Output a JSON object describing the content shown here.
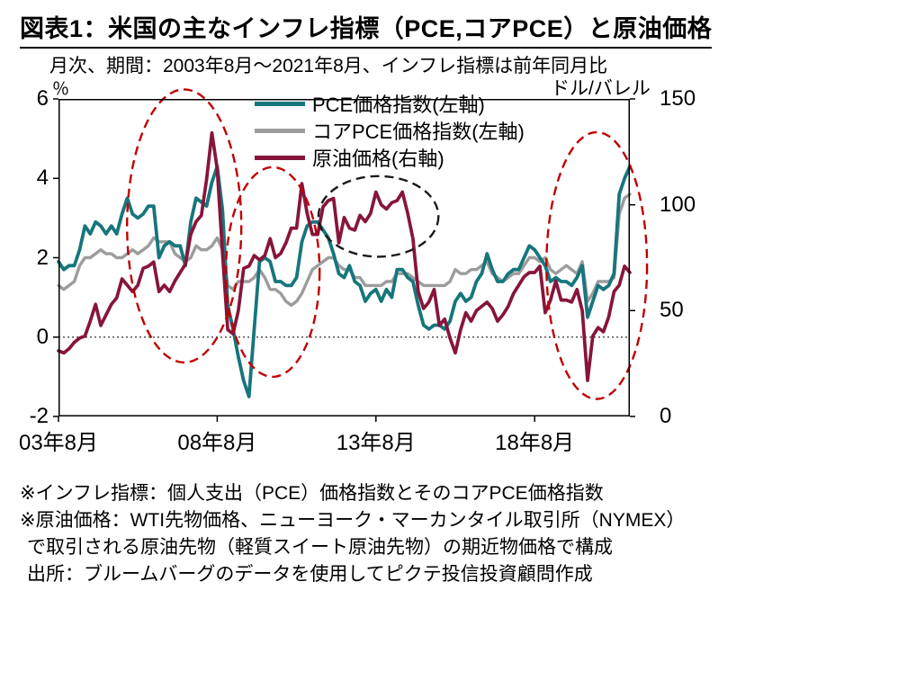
{
  "title": "図表1：米国の主なインフレ指標（PCE,コアPCE）と原油価格",
  "subtitle": "月次、期間：2003年8月～2021年8月、インフレ指標は前年同月比",
  "left_axis": {
    "unit": "％",
    "ticks": [
      6,
      4,
      2,
      0,
      -2
    ],
    "min": -2,
    "max": 6
  },
  "right_axis": {
    "unit": "ドル/バレル",
    "ticks": [
      150,
      100,
      50,
      0
    ],
    "min": 0,
    "max": 150
  },
  "x_ticks": [
    "03年8月",
    "08年8月",
    "13年8月",
    "18年8月"
  ],
  "legend": [
    {
      "label": "PCE価格指数(左軸)",
      "color": "#16767c"
    },
    {
      "label": "コアPCE価格指数(左軸)",
      "color": "#9c9c9c"
    },
    {
      "label": "原油価格(右軸)",
      "color": "#87153b"
    }
  ],
  "footnotes": [
    "※インフレ指標：個人支出（PCE）価格指数とそのコアPCE価格指数",
    "※原油価格：WTI先物価格、ニューヨーク・マーカンタイル取引所（NYMEX）",
    "で取引される原油先物（軽質スイート原油先物）の期近物価格で構成",
    "出所：ブルームバーグのデータを使用してピクテ投信投資顧問作成"
  ],
  "chart_data": {
    "type": "line",
    "title": "米国の主なインフレ指標（PCE,コアPCE）と原油価格",
    "x_start": "2003年8月",
    "x_end": "2021年8月",
    "interval_months": 2,
    "months_total": 216,
    "x_tick_months": [
      0,
      60,
      120,
      180
    ],
    "left_ylim": [
      -2,
      6
    ],
    "right_ylim": [
      0,
      150
    ],
    "grid": "zero-line-only",
    "legend_position": "top-inside",
    "series": [
      {
        "name": "PCE価格指数(左軸)",
        "axis": "left",
        "color": "#16767c",
        "unit": "%",
        "values": [
          1.9,
          1.7,
          1.8,
          1.8,
          2.2,
          2.8,
          2.6,
          2.9,
          2.8,
          2.6,
          2.8,
          2.6,
          3.1,
          3.5,
          3.1,
          3.0,
          3.1,
          3.3,
          3.3,
          2.0,
          2.3,
          2.4,
          2.3,
          2.3,
          1.8,
          2.9,
          3.5,
          3.4,
          3.3,
          3.9,
          4.3,
          3.2,
          0.8,
          0.2,
          -0.5,
          -1.1,
          -1.5,
          0.2,
          1.9,
          2.0,
          1.9,
          1.4,
          1.4,
          1.3,
          1.3,
          1.5,
          2.4,
          2.8,
          2.9,
          2.9,
          2.7,
          2.5,
          2.1,
          1.6,
          1.5,
          1.8,
          1.4,
          1.3,
          0.9,
          1.1,
          1.2,
          0.9,
          1.2,
          1.0,
          1.7,
          1.7,
          1.5,
          1.4,
          0.8,
          0.3,
          0.2,
          0.3,
          0.3,
          0.2,
          0.4,
          0.9,
          1.1,
          0.9,
          1.0,
          1.4,
          1.6,
          2.1,
          1.7,
          1.4,
          1.4,
          1.6,
          1.7,
          1.7,
          2.0,
          2.3,
          2.2,
          2.0,
          1.8,
          1.4,
          1.5,
          1.4,
          1.4,
          1.3,
          1.5,
          1.8,
          0.5,
          0.9,
          1.3,
          1.2,
          1.3,
          1.6,
          3.6,
          4.0,
          4.3
        ]
      },
      {
        "name": "コアPCE価格指数(左軸)",
        "axis": "left",
        "color": "#9c9c9c",
        "unit": "%",
        "values": [
          1.3,
          1.2,
          1.3,
          1.4,
          1.8,
          2.0,
          2.0,
          2.1,
          2.2,
          2.1,
          2.1,
          2.0,
          2.0,
          2.1,
          2.2,
          2.1,
          2.2,
          2.3,
          2.5,
          2.4,
          2.4,
          2.4,
          2.1,
          2.0,
          1.9,
          2.0,
          2.3,
          2.2,
          2.2,
          2.3,
          2.5,
          2.2,
          1.3,
          1.2,
          1.4,
          1.4,
          1.4,
          1.5,
          1.7,
          1.5,
          1.2,
          1.2,
          1.1,
          0.9,
          0.8,
          0.9,
          1.1,
          1.4,
          1.7,
          1.8,
          1.9,
          2.0,
          2.0,
          1.8,
          1.7,
          1.7,
          1.5,
          1.5,
          1.3,
          1.3,
          1.3,
          1.3,
          1.4,
          1.4,
          1.6,
          1.6,
          1.6,
          1.5,
          1.4,
          1.3,
          1.3,
          1.3,
          1.3,
          1.3,
          1.4,
          1.7,
          1.6,
          1.6,
          1.7,
          1.7,
          1.8,
          1.9,
          1.6,
          1.5,
          1.4,
          1.5,
          1.6,
          1.6,
          1.8,
          2.0,
          2.0,
          1.9,
          2.0,
          1.7,
          1.6,
          1.7,
          1.8,
          1.7,
          1.6,
          1.9,
          0.9,
          1.1,
          1.4,
          1.4,
          1.4,
          1.5,
          3.1,
          3.5,
          3.6
        ]
      },
      {
        "name": "原油価格(右軸)",
        "axis": "right",
        "color": "#87153b",
        "unit": "ドル/バレル",
        "values": [
          31,
          30,
          32,
          35,
          37,
          38,
          45,
          53,
          43,
          48,
          53,
          56,
          65,
          62,
          59,
          62,
          70,
          71,
          73,
          59,
          62,
          59,
          64,
          68,
          72,
          86,
          92,
          95,
          112,
          134,
          117,
          77,
          41,
          39,
          50,
          70,
          71,
          76,
          74,
          76,
          84,
          75,
          77,
          82,
          89,
          89,
          110,
          96,
          86,
          86,
          99,
          102,
          103,
          82,
          94,
          89,
          88,
          95,
          92,
          96,
          106,
          100,
          98,
          101,
          102,
          106,
          96,
          84,
          59,
          51,
          54,
          60,
          43,
          46,
          37,
          30,
          41,
          49,
          45,
          50,
          52,
          54,
          51,
          45,
          48,
          52,
          58,
          62,
          66,
          68,
          68,
          71,
          49,
          55,
          64,
          55,
          55,
          54,
          60,
          50,
          17,
          38,
          42,
          40,
          47,
          59,
          62,
          71,
          68
        ]
      }
    ],
    "annotations": [
      {
        "shape": "ellipse",
        "style": "dashed",
        "color": "#c00000",
        "cx": 0.22,
        "cy": 0.4,
        "rx": 0.1,
        "ry": 0.43
      },
      {
        "shape": "ellipse",
        "style": "dashed",
        "color": "#c00000",
        "cx": 0.375,
        "cy": 0.545,
        "rx": 0.082,
        "ry": 0.33
      },
      {
        "shape": "ellipse",
        "style": "dashed",
        "color": "#c00000",
        "cx": 0.942,
        "cy": 0.525,
        "rx": 0.088,
        "ry": 0.42
      },
      {
        "shape": "ellipse",
        "style": "dashed",
        "color": "#1a1a1a",
        "cx": 0.56,
        "cy": 0.37,
        "rx": 0.105,
        "ry": 0.127
      }
    ]
  }
}
